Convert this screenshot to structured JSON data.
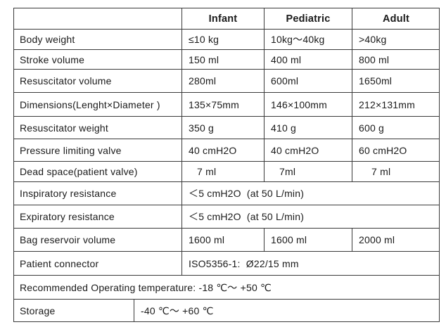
{
  "headers": {
    "infant": "Infant",
    "pediatric": "Pediatric",
    "adult": "Adult"
  },
  "rows": [
    {
      "label": "Body weight",
      "infant": "≤10 kg",
      "pediatric": "10kg～40kg",
      "adult": ">40kg"
    },
    {
      "label": "Stroke volume",
      "infant": "150 ml",
      "pediatric": "400 ml",
      "adult": "800 ml"
    },
    {
      "label": "Resuscitator volume",
      "infant": "280ml",
      "pediatric": "600ml",
      "adult": "1650ml"
    },
    {
      "label": "Dimensions(Lenght×Diameter )",
      "infant": "135×75mm",
      "pediatric": "146×100mm",
      "adult": "212×131mm"
    },
    {
      "label": "Resuscitator weight",
      "infant": "350 g",
      "pediatric": "410 g",
      "adult": "600 g"
    },
    {
      "label": "Pressure limiting valve",
      "infant": "40 cmH2O",
      "pediatric": "40 cmH2O",
      "adult": "60 cmH2O"
    },
    {
      "label": "Dead space(patient valve)",
      "infant": "7 ml",
      "pediatric": "7ml",
      "adult": "7 ml"
    }
  ],
  "inspiratory": {
    "label": "Inspiratory resistance",
    "value": "＜5 cmH2O  (at 50 L/min)"
  },
  "expiratory": {
    "label": "Expiratory resistance",
    "value": "＜5 cmH2O  (at 50 L/min)"
  },
  "bag": {
    "label": "Bag reservoir volume",
    "infant": "1600 ml",
    "pediatric": "1600 ml",
    "adult": "2000 ml"
  },
  "connector": {
    "label": "Patient connector",
    "value": "ISO5356-1:  Ø22/15 mm"
  },
  "operating": {
    "text": "Recommended Operating temperature: -18 ℃～ +50 ℃"
  },
  "storage": {
    "label": "Storage",
    "value": "-40 ℃～ +60 ℃"
  }
}
